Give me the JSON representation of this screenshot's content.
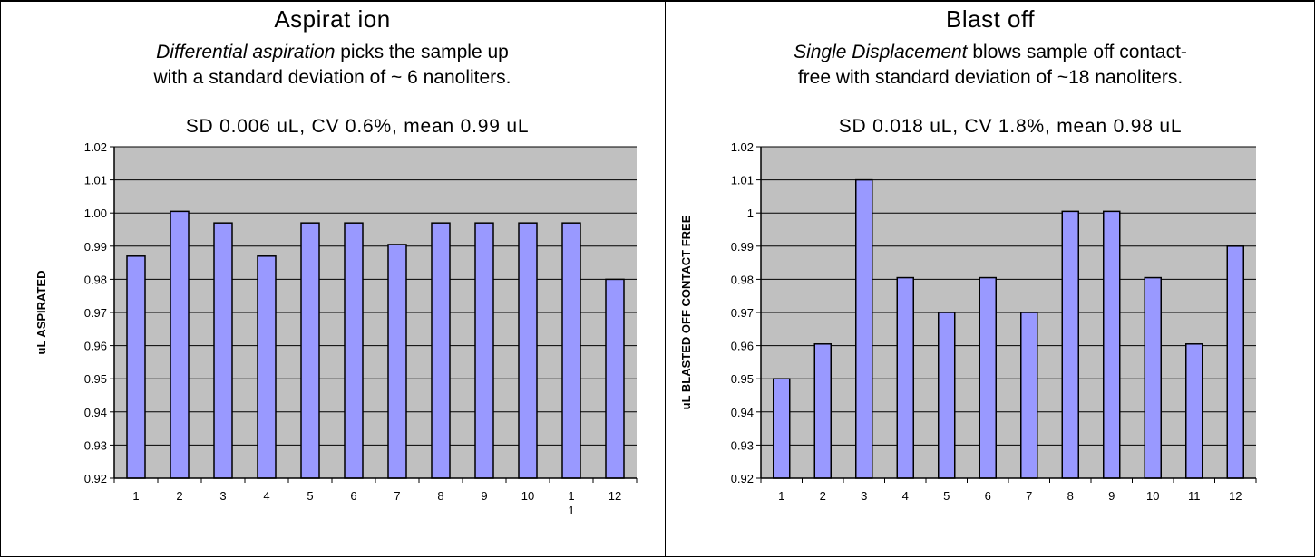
{
  "panels": [
    {
      "title": "Aspirat ion",
      "desc_line1_em": "Differential aspiration",
      "desc_line1_rest": " picks the sample up",
      "desc_line2": "with a standard deviation of ~ 6 nanoliters."
    },
    {
      "title": "Blast off",
      "desc_line1_em": "Single Displacement",
      "desc_line1_rest": " blows sample off contact-",
      "desc_line2": "free with standard deviation of ~18 nanoliters."
    }
  ],
  "chart_data": [
    {
      "type": "bar",
      "title": "SD 0.006 uL, CV 0.6%, mean 0.99 uL",
      "ylabel": "uL ASPIRATED",
      "xlabel": "",
      "categories": [
        "1",
        "2",
        "3",
        "4",
        "5",
        "6",
        "7",
        "8",
        "9",
        "10",
        "1\n1",
        "12"
      ],
      "values": [
        0.987,
        1.0005,
        0.997,
        0.987,
        0.997,
        0.997,
        0.9905,
        0.997,
        0.997,
        0.997,
        0.997,
        0.98
      ],
      "ylim": [
        0.92,
        1.02
      ],
      "yticks": [
        "0.92",
        "0.93",
        "0.94",
        "0.95",
        "0.96",
        "0.97",
        "0.98",
        "0.99",
        "1.00",
        "1.01",
        "1.02"
      ],
      "grid": true,
      "bar_color": "#9999ff",
      "plot_bg": "#c0c0c0"
    },
    {
      "type": "bar",
      "title": "SD 0.018 uL, CV 1.8%, mean 0.98 uL",
      "ylabel": "uL BLASTED OFF CONTACT FREE",
      "xlabel": "",
      "categories": [
        "1",
        "2",
        "3",
        "4",
        "5",
        "6",
        "7",
        "8",
        "9",
        "10",
        "11",
        "12"
      ],
      "values": [
        0.95,
        0.9605,
        1.01,
        0.9805,
        0.97,
        0.9805,
        0.97,
        1.0005,
        1.0005,
        0.9805,
        0.9605,
        0.99
      ],
      "ylim": [
        0.92,
        1.02
      ],
      "yticks": [
        "0.92",
        "0.93",
        "0.94",
        "0.95",
        "0.96",
        "0.97",
        "0.98",
        "0.99",
        "1",
        "1.01",
        "1.02"
      ],
      "grid": true,
      "bar_color": "#9999ff",
      "plot_bg": "#c0c0c0"
    }
  ]
}
